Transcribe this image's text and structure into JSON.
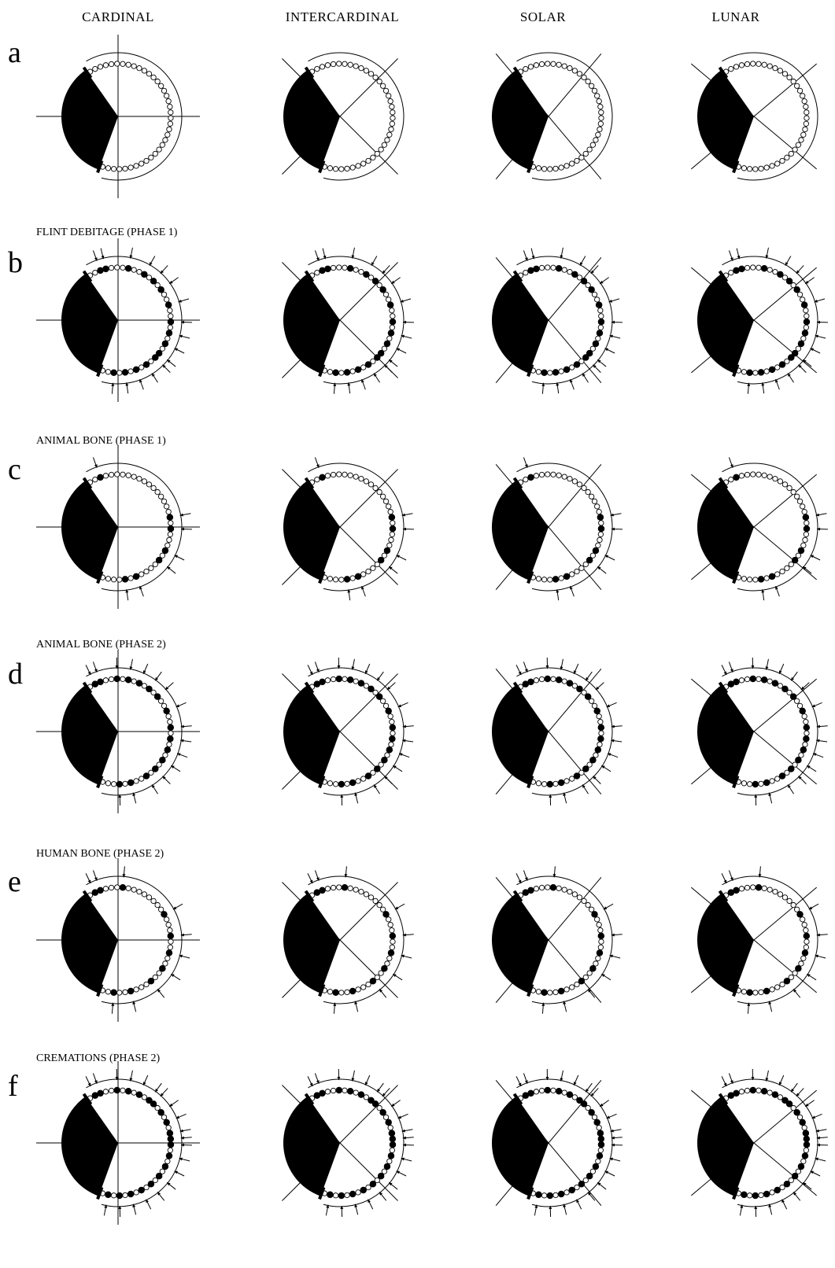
{
  "columns": [
    "CARDINAL",
    "INTERCARDINAL",
    "SOLAR",
    "LUNAR"
  ],
  "rows": [
    {
      "letter": "a",
      "caption": "",
      "finds": []
    },
    {
      "letter": "b",
      "caption": "FLINT DEBITAGE (PHASE 1)",
      "finds": [
        2,
        3,
        7,
        10,
        12,
        14,
        17,
        20,
        22,
        24,
        26,
        27,
        29,
        31,
        33,
        35
      ]
    },
    {
      "letter": "c",
      "caption": "ANIMAL BONE (PHASE 1)",
      "finds": [
        2,
        18,
        20,
        24,
        26,
        31,
        33
      ]
    },
    {
      "letter": "d",
      "caption": "ANIMAL BONE (PHASE 2)",
      "finds": [
        1,
        2,
        5,
        7,
        9,
        11,
        13,
        16,
        19,
        21,
        23,
        25,
        27,
        29,
        32,
        34
      ]
    },
    {
      "letter": "e",
      "caption": "HUMAN BONE (PHASE 2)",
      "finds": [
        1,
        2,
        6,
        15,
        19,
        22,
        25,
        28,
        32,
        35
      ]
    },
    {
      "letter": "f",
      "caption": "CREMATIONS (PHASE 2)",
      "finds": [
        1,
        2,
        5,
        7,
        9,
        11,
        12,
        14,
        16,
        18,
        19,
        20,
        22,
        24,
        26,
        28,
        30,
        32,
        34,
        36
      ]
    }
  ],
  "enclosure": {
    "posts": 38,
    "filled_sector_start_deg": 200,
    "filled_sector_end_deg": 325
  },
  "axis_angles_deg": {
    "CARDINAL": [
      0,
      90
    ],
    "INTERCARDINAL": [
      45,
      135
    ],
    "SOLAR": [
      40,
      140
    ],
    "LUNAR": [
      50,
      130
    ]
  },
  "colors": {
    "ink": "#000000",
    "paper": "#ffffff"
  }
}
